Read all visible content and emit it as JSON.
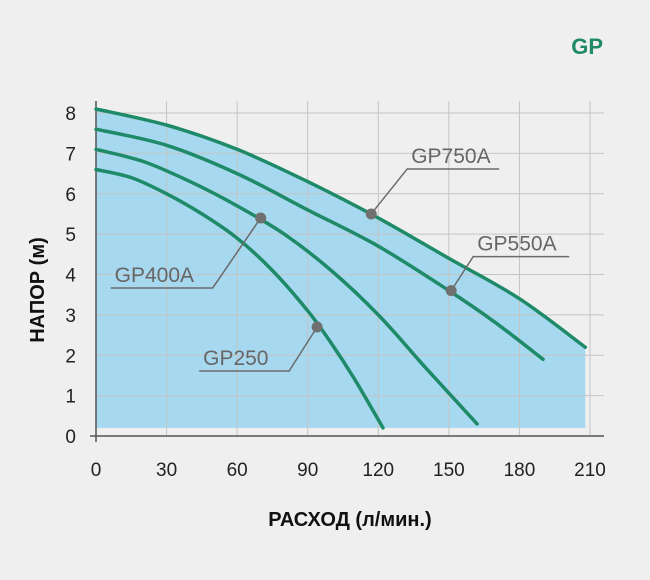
{
  "brand": {
    "label": "GP",
    "color": "#1e8a68"
  },
  "chart_data": {
    "type": "line",
    "title": "",
    "xlabel": "РАСХОД (л/мин.)",
    "ylabel": "НАПОР (м)",
    "xlim": [
      0,
      210
    ],
    "ylim": [
      0,
      8
    ],
    "x_ticks": [
      "0",
      "30",
      "60",
      "90",
      "120",
      "150",
      "180",
      "210"
    ],
    "y_ticks": [
      "0",
      "1",
      "2",
      "3",
      "4",
      "5",
      "6",
      "7",
      "8"
    ],
    "grid": true,
    "fill_color": "#a6d8ef",
    "line_color": "#1e8a68",
    "series": [
      {
        "name": "GP250",
        "label_position": "left",
        "marker": [
          94,
          2.7
        ],
        "points": [
          [
            0,
            6.6
          ],
          [
            15,
            6.4
          ],
          [
            30,
            6.0
          ],
          [
            45,
            5.5
          ],
          [
            60,
            4.9
          ],
          [
            75,
            4.1
          ],
          [
            90,
            3.1
          ],
          [
            100,
            2.3
          ],
          [
            110,
            1.4
          ],
          [
            122,
            0.2
          ]
        ]
      },
      {
        "name": "GP400A",
        "label_position": "left",
        "marker": [
          70,
          5.4
        ],
        "points": [
          [
            0,
            7.1
          ],
          [
            20,
            6.8
          ],
          [
            40,
            6.3
          ],
          [
            60,
            5.7
          ],
          [
            80,
            5.0
          ],
          [
            100,
            4.1
          ],
          [
            120,
            3.0
          ],
          [
            140,
            1.7
          ],
          [
            162,
            0.3
          ]
        ]
      },
      {
        "name": "GP550A",
        "label_position": "right",
        "marker": [
          151,
          3.6
        ],
        "points": [
          [
            0,
            7.6
          ],
          [
            30,
            7.2
          ],
          [
            60,
            6.5
          ],
          [
            90,
            5.6
          ],
          [
            120,
            4.7
          ],
          [
            150,
            3.6
          ],
          [
            170,
            2.8
          ],
          [
            190,
            1.9
          ]
        ]
      },
      {
        "name": "GP750A",
        "label_position": "right",
        "marker": [
          117,
          5.5
        ],
        "points": [
          [
            0,
            8.1
          ],
          [
            30,
            7.7
          ],
          [
            60,
            7.1
          ],
          [
            90,
            6.3
          ],
          [
            120,
            5.4
          ],
          [
            150,
            4.4
          ],
          [
            180,
            3.4
          ],
          [
            208,
            2.2
          ]
        ]
      }
    ]
  }
}
